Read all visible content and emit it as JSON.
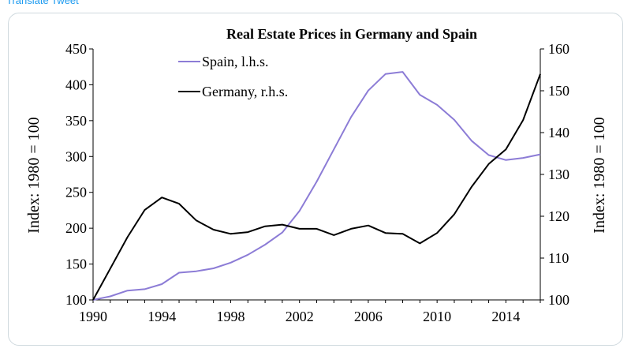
{
  "header": {
    "link_text": "Translate Tweet"
  },
  "chart_data": {
    "type": "line",
    "title": "Real Estate Prices in Germany and Spain",
    "xlabel": "",
    "ylabel_left": "Index: 1980 = 100",
    "ylabel_right": "Index: 1980 = 100",
    "xlim": [
      1990,
      2016
    ],
    "ylim_left": [
      100,
      450
    ],
    "ylim_right": [
      100,
      160
    ],
    "x_ticks": [
      "1990",
      "1994",
      "1998",
      "2002",
      "2006",
      "2010",
      "2014"
    ],
    "y_ticks_left": [
      "100",
      "150",
      "200",
      "250",
      "300",
      "350",
      "400",
      "450"
    ],
    "y_ticks_right": [
      "100",
      "110",
      "120",
      "130",
      "140",
      "150",
      "160"
    ],
    "legend_position": "top-left",
    "grid": false,
    "series": [
      {
        "name": "Spain, l.h.s.",
        "axis": "left",
        "color": "#8c7cd6",
        "x": [
          1990,
          1991,
          1992,
          1993,
          1994,
          1995,
          1996,
          1997,
          1998,
          1999,
          2000,
          2001,
          2002,
          2003,
          2004,
          2005,
          2006,
          2007,
          2008,
          2009,
          2010,
          2011,
          2012,
          2013,
          2014,
          2015,
          2016
        ],
        "values": [
          100,
          105,
          113,
          115,
          122,
          138,
          140,
          144,
          152,
          163,
          177,
          194,
          224,
          265,
          310,
          355,
          392,
          415,
          418,
          386,
          372,
          351,
          322,
          302,
          295,
          298,
          303
        ]
      },
      {
        "name": "Germany, r.h.s.",
        "axis": "right",
        "color": "#000000",
        "x": [
          1990,
          1991,
          1992,
          1993,
          1994,
          1995,
          1996,
          1997,
          1998,
          1999,
          2000,
          2001,
          2002,
          2003,
          2004,
          2005,
          2006,
          2007,
          2008,
          2009,
          2010,
          2011,
          2012,
          2013,
          2014,
          2015,
          2016
        ],
        "values": [
          100,
          107.5,
          115,
          121.5,
          124.5,
          123,
          119,
          116.8,
          115.8,
          116.2,
          117.6,
          118,
          117,
          117,
          115.5,
          117,
          117.8,
          116,
          115.8,
          113.5,
          116,
          120.5,
          127,
          132.5,
          136,
          143,
          154
        ]
      }
    ]
  }
}
